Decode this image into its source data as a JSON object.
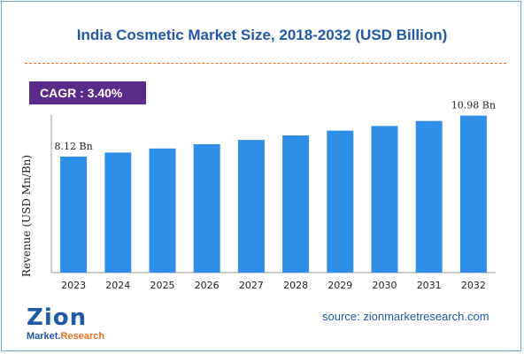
{
  "chart_data": {
    "type": "bar",
    "title": "India Cosmetic Market Size, 2018-2032 (USD Billion)",
    "ylabel": "Revenue (USD Mn/Bn)",
    "xlabel": "",
    "categories": [
      "2023",
      "2024",
      "2025",
      "2026",
      "2027",
      "2028",
      "2029",
      "2030",
      "2031",
      "2032"
    ],
    "values": [
      8.12,
      8.4,
      8.68,
      8.98,
      9.28,
      9.6,
      9.93,
      10.26,
      10.61,
      10.98
    ],
    "data_labels": [
      {
        "index": 0,
        "text": "8.12 Bn"
      },
      {
        "index": 9,
        "text": "10.98 Bn"
      }
    ],
    "ylim": [
      0,
      13.5
    ],
    "grid": false,
    "legend": "none",
    "bar_color": "#2f8ee8"
  },
  "badge": {
    "cagr_text": "CAGR : 3.40%"
  },
  "source": {
    "text": "source: zionmarketresearch.com"
  },
  "logo": {
    "top_text": "Zion",
    "bottom_left": "Market.",
    "bottom_right": "Research"
  },
  "colors": {
    "title": "#1f5aa6",
    "badge_bg": "#5b2b8c",
    "divider": "#e8702a",
    "frame": "#6fa8dc"
  }
}
